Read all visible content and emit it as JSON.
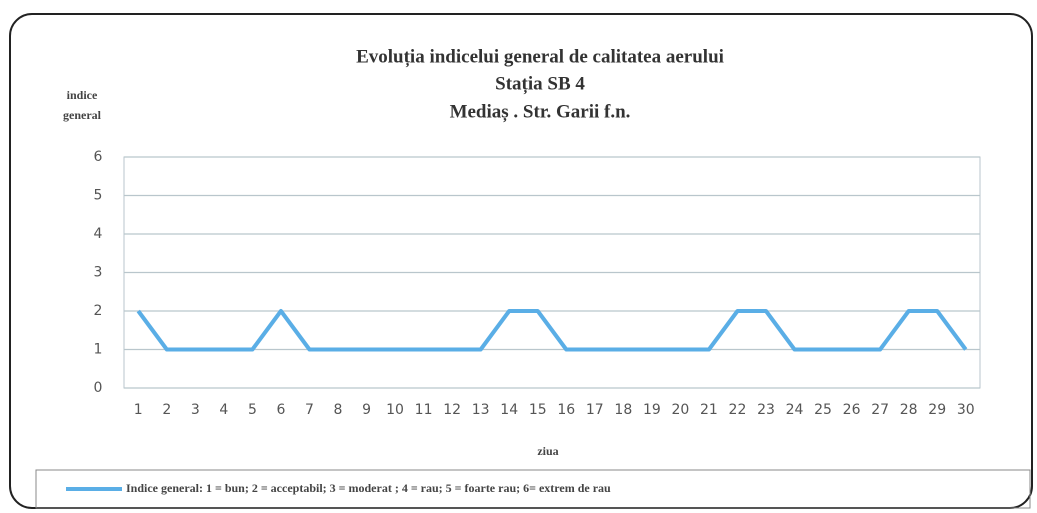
{
  "chart_data": {
    "type": "line",
    "title": [
      "Evoluția  indicelui  general de calitatea aerului",
      "Stația SB 4",
      "Mediaș . Str. Garii  f.n."
    ],
    "ylabel": [
      "indice",
      "general"
    ],
    "xlabel": "ziua",
    "categories": [
      "1",
      "2",
      "3",
      "4",
      "5",
      "6",
      "7",
      "8",
      "9",
      "10",
      "11",
      "12",
      "13",
      "14",
      "15",
      "16",
      "17",
      "18",
      "19",
      "20",
      "21",
      "22",
      "23",
      "24",
      "25",
      "26",
      "27",
      "28",
      "29",
      "30"
    ],
    "series": [
      {
        "name": "Indice general: 1 = bun; 2 = acceptabil; 3 = moderat ; 4 = rau; 5 = foarte rau; 6= extrem de rau",
        "color": "#5aaee6",
        "values": [
          2,
          1,
          1,
          1,
          1,
          2,
          1,
          1,
          1,
          1,
          1,
          1,
          1,
          2,
          2,
          1,
          1,
          1,
          1,
          1,
          1,
          2,
          2,
          1,
          1,
          1,
          1,
          2,
          2,
          1
        ]
      }
    ],
    "ylim": [
      0,
      6
    ],
    "yticks": [
      0,
      1,
      2,
      3,
      4,
      5,
      6
    ],
    "grid": true,
    "legend": "bottom"
  }
}
